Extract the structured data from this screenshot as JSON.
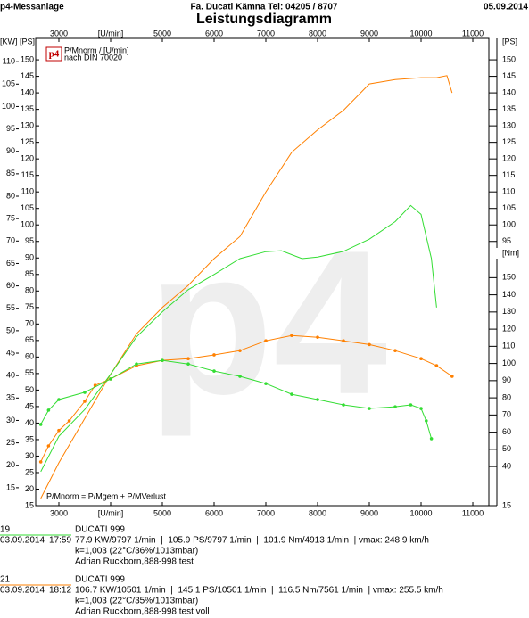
{
  "header": {
    "left": "p4-Messanlage",
    "center": "Fa. Ducati Kämna Tel: 04205 / 8707",
    "right": "05.09.2014",
    "title": "Leistungsdiagramm",
    "logo": "p4"
  },
  "chart_data": {
    "type": "line",
    "legend_lines": [
      "P/Mnorm / [U/min]",
      "nach DIN 70020"
    ],
    "formula": "P/Mnorm = P/Mgem + P/MVerlust",
    "xlim": [
      2552,
      11310
    ],
    "xticks": [
      3000,
      {
        "value": 4000,
        "label": "[U/min]"
      },
      5000,
      6000,
      7000,
      8000,
      9000,
      10000,
      11000
    ],
    "y_label": "[PS]",
    "ylim": [
      15,
      156.5
    ],
    "yticks": [
      15,
      20,
      25,
      30,
      35,
      40,
      45,
      50,
      55,
      60,
      65,
      70,
      75,
      80,
      85,
      90,
      95,
      100,
      105,
      110,
      115,
      120,
      125,
      130,
      135,
      140,
      145,
      150
    ],
    "y_right_ticks": [
      150,
      145,
      140,
      135,
      130,
      125,
      120,
      115,
      110,
      105,
      100,
      95,
      15
    ],
    "y2_label": "[KW]",
    "y2lim": [
      11.0,
      115.2
    ],
    "y2ticks": [
      15,
      20,
      25,
      30,
      35,
      40,
      45,
      50,
      55,
      60,
      65,
      70,
      75,
      80,
      85,
      90,
      95,
      100,
      105,
      110
    ],
    "y3_label": "[Nm]",
    "y3lim": [
      17.2,
      289.4
    ],
    "y3ticks": [
      40,
      50,
      60,
      70,
      80,
      90,
      100,
      110,
      120,
      130,
      140,
      150
    ],
    "series": [
      {
        "color": "#ff8000",
        "axis": "y",
        "markers": false,
        "x": [
          2650,
          3000,
          3500,
          4000,
          4500,
          5000,
          5500,
          6000,
          6500,
          7000,
          7500,
          8000,
          8500,
          9000,
          9500,
          10000,
          10300,
          10500,
          10600
        ],
        "values": [
          17.2,
          28,
          41.4,
          54.8,
          67,
          75,
          81.7,
          89.8,
          96.5,
          110,
          122,
          128.8,
          134.7,
          142.7,
          144,
          144.6,
          144.6,
          145.2,
          140
        ]
      },
      {
        "color": "#33dd33",
        "axis": "y",
        "markers": false,
        "x": [
          2650,
          3000,
          3500,
          4000,
          4500,
          5000,
          5500,
          6000,
          6500,
          7000,
          7300,
          7700,
          8000,
          8500,
          9000,
          9500,
          9800,
          10000,
          10200,
          10300
        ],
        "values": [
          25.3,
          36,
          44.1,
          54.8,
          66.1,
          73.7,
          80.4,
          85,
          89.8,
          91.9,
          92.2,
          89.8,
          90.3,
          92,
          95.7,
          101,
          105.9,
          103.2,
          89.8,
          75
        ]
      },
      {
        "color": "#ff8000",
        "axis": "y3",
        "markers": true,
        "x": [
          2650,
          2800,
          3000,
          3200,
          3500,
          3700,
          4000,
          4500,
          5000,
          5500,
          6000,
          6500,
          7000,
          7500,
          8000,
          8500,
          9000,
          9500,
          10000,
          10300,
          10600
        ],
        "values": [
          42.7,
          52,
          61,
          66.6,
          78,
          87.3,
          91,
          98.7,
          101.8,
          102.8,
          105,
          107.5,
          113.2,
          116.3,
          115.3,
          113.2,
          111,
          107.5,
          102.8,
          98.7,
          92.5
        ]
      },
      {
        "color": "#33dd33",
        "axis": "y3",
        "markers": true,
        "x": [
          2650,
          2800,
          3000,
          3500,
          4000,
          4500,
          5000,
          5500,
          6000,
          6500,
          7000,
          7500,
          8000,
          8500,
          9000,
          9500,
          9800,
          10000,
          10100,
          10200
        ],
        "values": [
          64.5,
          72.8,
          79,
          83.2,
          91,
          99.7,
          101.8,
          99.7,
          95.6,
          92.5,
          88.3,
          82.1,
          79,
          75.9,
          73.8,
          74.8,
          75.9,
          73.8,
          66.6,
          56.2
        ]
      }
    ]
  },
  "runs": [
    {
      "id": "19",
      "color": "#33dd33",
      "name": "DUCATI 999",
      "date": "03.09.2014",
      "time": "17:59",
      "details": "77.9 KW/9797 1/min  |  105.9 PS/9797 1/min  |  101.9 Nm/4913 1/min  | vmax: 248.9 km/h",
      "conditions": "k=1,003 (22°C/36%/1013mbar)",
      "note": "Adrian Ruckborn,888-998 test"
    },
    {
      "id": "21",
      "color": "#ff8000",
      "name": "DUCATI 999",
      "date": "03.09.2014",
      "time": "18:12",
      "details": "106.7 KW/10501 1/min  |  145.1 PS/10501 1/min  |  116.5 Nm/7561 1/min  | vmax: 255.5 km/h",
      "conditions": "k=1,003 (22°C/35%/1013mbar)",
      "note": "Adrian Ruckborn,888-998 test voll"
    }
  ]
}
